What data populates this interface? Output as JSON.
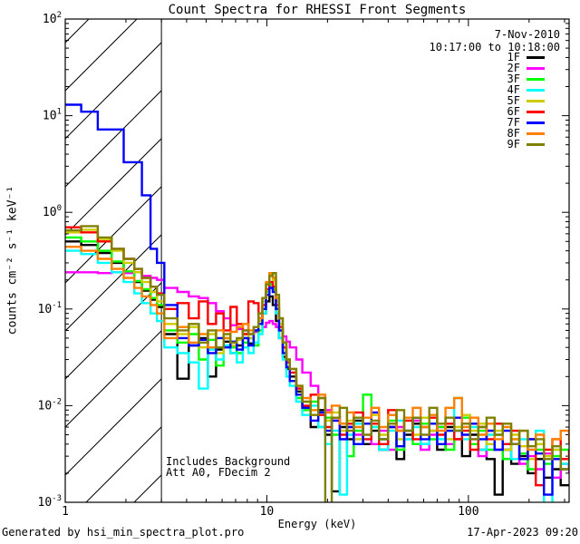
{
  "title": "Count Spectra for RHESSI Front Segments",
  "header": {
    "date": "7-Nov-2010",
    "time_range": "10:17:00 to 10:18:00"
  },
  "annotations": {
    "background": "Includes Background",
    "attenuator": "Att A0, FDecim 2"
  },
  "footer": {
    "generated_by": "Generated by hsi_min_spectra_plot.pro",
    "timestamp": "17-Apr-2023 09:20"
  },
  "chart_data": {
    "type": "line",
    "title": "Count Spectra for RHESSI Front Segments",
    "xlabel": "Energy (keV)",
    "ylabel": "counts cm⁻² s⁻¹ keV⁻¹",
    "xscale": "log",
    "yscale": "log",
    "xlim": [
      1,
      316
    ],
    "ylim": [
      0.001,
      100
    ],
    "x_major_ticks": [
      1,
      10,
      100
    ],
    "y_major_tick_exponents": [
      2,
      1,
      0,
      -1,
      -2,
      -3
    ],
    "grid": false,
    "legend_position": "top-right-inside",
    "step_mode": true,
    "hatched_region": {
      "x_range": [
        1,
        3
      ],
      "style": "diagonal-lines"
    },
    "energies": [
      1.0,
      1.2,
      1.45,
      1.7,
      1.95,
      2.2,
      2.4,
      2.65,
      2.85,
      3.1,
      3.6,
      4.1,
      4.6,
      5.1,
      5.6,
      6.1,
      6.6,
      7.1,
      7.6,
      8.1,
      8.6,
      9.1,
      9.5,
      9.9,
      10.3,
      10.7,
      11.1,
      11.5,
      12.0,
      12.5,
      13,
      14,
      15,
      16.5,
      18,
      19.5,
      21,
      23,
      25,
      27,
      30,
      33,
      36,
      40,
      44,
      48,
      53,
      58,
      64,
      70,
      77,
      85,
      93,
      102,
      112,
      123,
      135,
      148,
      163,
      179,
      197,
      216,
      237,
      261,
      287,
      316
    ],
    "series": [
      {
        "name": "1F",
        "color": "#000000",
        "values": [
          0.5,
          0.46,
          0.38,
          0.3,
          0.24,
          0.19,
          0.155,
          0.125,
          0.105,
          0.055,
          0.019,
          0.042,
          0.05,
          0.02,
          0.038,
          0.046,
          0.035,
          0.042,
          0.05,
          0.044,
          0.06,
          0.07,
          0.09,
          0.12,
          0.135,
          0.11,
          0.075,
          0.05,
          0.032,
          0.024,
          0.02,
          0.014,
          0.0095,
          0.006,
          0.009,
          0.005,
          0.0013,
          0.006,
          0.0045,
          0.007,
          0.004,
          0.0055,
          0.0035,
          0.006,
          0.0028,
          0.005,
          0.0065,
          0.004,
          0.0055,
          0.0035,
          0.006,
          0.0045,
          0.003,
          0.005,
          0.0035,
          0.0028,
          0.0012,
          0.0035,
          0.0025,
          0.003,
          0.002,
          0.0028,
          0.0018,
          0.0022,
          0.0015,
          0.0015
        ]
      },
      {
        "name": "2F",
        "color": "#FF00FF",
        "values": [
          0.24,
          0.24,
          0.235,
          0.24,
          0.235,
          0.24,
          0.22,
          0.21,
          0.2,
          0.165,
          0.15,
          0.135,
          0.13,
          0.115,
          0.095,
          0.08,
          0.068,
          0.062,
          0.06,
          0.055,
          0.058,
          0.06,
          0.065,
          0.072,
          0.075,
          0.07,
          0.065,
          0.06,
          0.052,
          0.046,
          0.04,
          0.03,
          0.022,
          0.016,
          0.012,
          0.009,
          0.007,
          0.0045,
          0.006,
          0.005,
          0.0065,
          0.004,
          0.0055,
          0.0035,
          0.006,
          0.0045,
          0.007,
          0.0035,
          0.005,
          0.006,
          0.004,
          0.0055,
          0.0065,
          0.0045,
          0.003,
          0.0055,
          0.0035,
          0.0028,
          0.004,
          0.0025,
          0.003,
          0.0022,
          0.0032,
          0.0018,
          0.0025,
          0.002
        ]
      },
      {
        "name": "3F",
        "color": "#00FF00",
        "values": [
          0.55,
          0.5,
          0.4,
          0.31,
          0.245,
          0.195,
          0.16,
          0.13,
          0.11,
          0.06,
          0.045,
          0.055,
          0.03,
          0.048,
          0.026,
          0.05,
          0.04,
          0.035,
          0.045,
          0.05,
          0.042,
          0.06,
          0.1,
          0.15,
          0.18,
          0.16,
          0.1,
          0.06,
          0.035,
          0.025,
          0.018,
          0.012,
          0.009,
          0.011,
          0.006,
          0.0075,
          0.005,
          0.0065,
          0.003,
          0.0055,
          0.013,
          0.006,
          0.0045,
          0.007,
          0.0035,
          0.0055,
          0.004,
          0.0065,
          0.0045,
          0.006,
          0.0035,
          0.0055,
          0.0075,
          0.004,
          0.0055,
          0.0035,
          0.005,
          0.0028,
          0.0045,
          0.0032,
          0.0022,
          0.0035,
          0.0025,
          0.003,
          0.0035,
          0.003
        ]
      },
      {
        "name": "4F",
        "color": "#00FFFF",
        "values": [
          0.4,
          0.37,
          0.3,
          0.24,
          0.19,
          0.145,
          0.115,
          0.09,
          0.075,
          0.04,
          0.035,
          0.028,
          0.015,
          0.038,
          0.03,
          0.042,
          0.035,
          0.028,
          0.04,
          0.035,
          0.045,
          0.055,
          0.09,
          0.14,
          0.17,
          0.15,
          0.09,
          0.05,
          0.03,
          0.02,
          0.016,
          0.011,
          0.008,
          0.01,
          0.006,
          0.004,
          0.0055,
          0.0012,
          0.005,
          0.0065,
          0.0045,
          0.006,
          0.0035,
          0.0055,
          0.007,
          0.0045,
          0.006,
          0.004,
          0.0065,
          0.0045,
          0.0055,
          0.012,
          0.0045,
          0.006,
          0.0035,
          0.005,
          0.0065,
          0.004,
          0.0028,
          0.0045,
          0.0035,
          0.0055,
          0.0008,
          0.0035,
          0.0025,
          0.003
        ]
      },
      {
        "name": "5F",
        "color": "#CCCC00",
        "values": [
          0.62,
          0.66,
          0.52,
          0.4,
          0.3,
          0.24,
          0.19,
          0.15,
          0.12,
          0.07,
          0.055,
          0.065,
          0.04,
          0.055,
          0.035,
          0.05,
          0.042,
          0.048,
          0.055,
          0.05,
          0.06,
          0.075,
          0.12,
          0.18,
          0.23,
          0.2,
          0.12,
          0.07,
          0.04,
          0.028,
          0.022,
          0.015,
          0.011,
          0.008,
          0.012,
          0.007,
          0.0085,
          0.0055,
          0.007,
          0.0045,
          0.0065,
          0.008,
          0.005,
          0.0065,
          0.0045,
          0.007,
          0.005,
          0.0075,
          0.0055,
          0.0065,
          0.0045,
          0.006,
          0.008,
          0.0055,
          0.0065,
          0.004,
          0.0055,
          0.0035,
          0.005,
          0.0038,
          0.0028,
          0.004,
          0.003,
          0.0035,
          0.0028,
          0.0032
        ]
      },
      {
        "name": "6F",
        "color": "#FF0000",
        "values": [
          0.7,
          0.62,
          0.5,
          0.42,
          0.33,
          0.26,
          0.21,
          0.17,
          0.145,
          0.1,
          0.115,
          0.08,
          0.12,
          0.07,
          0.09,
          0.06,
          0.105,
          0.07,
          0.055,
          0.12,
          0.115,
          0.08,
          0.11,
          0.16,
          0.19,
          0.17,
          0.11,
          0.065,
          0.04,
          0.028,
          0.022,
          0.015,
          0.01,
          0.013,
          0.008,
          0.006,
          0.0075,
          0.005,
          0.0065,
          0.0085,
          0.0045,
          0.0065,
          0.004,
          0.009,
          0.0055,
          0.007,
          0.0045,
          0.006,
          0.0075,
          0.005,
          0.0065,
          0.0045,
          0.0055,
          0.0035,
          0.006,
          0.0045,
          0.0065,
          0.004,
          0.0055,
          0.0028,
          0.0045,
          0.0015,
          0.0035,
          0.0045,
          0.0028,
          0.0035
        ]
      },
      {
        "name": "7F",
        "color": "#0000FF",
        "values": [
          13,
          11,
          7.2,
          7.2,
          3.3,
          3.3,
          1.5,
          0.42,
          0.3,
          0.11,
          0.05,
          0.042,
          0.048,
          0.035,
          0.05,
          0.04,
          0.046,
          0.038,
          0.05,
          0.042,
          0.06,
          0.07,
          0.1,
          0.14,
          0.165,
          0.15,
          0.1,
          0.06,
          0.035,
          0.025,
          0.018,
          0.013,
          0.0095,
          0.007,
          0.0085,
          0.0055,
          0.007,
          0.0045,
          0.006,
          0.004,
          0.0065,
          0.0085,
          0.0045,
          0.006,
          0.0038,
          0.0055,
          0.0075,
          0.0045,
          0.0065,
          0.004,
          0.0055,
          0.0075,
          0.005,
          0.0065,
          0.0045,
          0.0055,
          0.0035,
          0.0055,
          0.004,
          0.0028,
          0.0045,
          0.0032,
          0.0012,
          0.0028,
          0.0022,
          0.0025
        ]
      },
      {
        "name": "8F",
        "color": "#FF8000",
        "values": [
          0.44,
          0.4,
          0.33,
          0.26,
          0.21,
          0.165,
          0.135,
          0.11,
          0.09,
          0.05,
          0.065,
          0.045,
          0.055,
          0.04,
          0.06,
          0.05,
          0.058,
          0.065,
          0.07,
          0.06,
          0.065,
          0.08,
          0.13,
          0.19,
          0.235,
          0.21,
          0.13,
          0.08,
          0.045,
          0.03,
          0.024,
          0.016,
          0.012,
          0.009,
          0.013,
          0.0085,
          0.01,
          0.0065,
          0.0085,
          0.006,
          0.0075,
          0.0095,
          0.006,
          0.008,
          0.0055,
          0.0075,
          0.0095,
          0.006,
          0.008,
          0.0055,
          0.0095,
          0.012,
          0.006,
          0.0075,
          0.005,
          0.0065,
          0.0045,
          0.006,
          0.0045,
          0.0055,
          0.0035,
          0.005,
          0.0028,
          0.0045,
          0.0055,
          0.004
        ]
      },
      {
        "name": "9F",
        "color": "#808000",
        "values": [
          0.65,
          0.72,
          0.55,
          0.42,
          0.33,
          0.26,
          0.21,
          0.17,
          0.14,
          0.08,
          0.06,
          0.07,
          0.045,
          0.06,
          0.04,
          0.055,
          0.045,
          0.05,
          0.06,
          0.055,
          0.065,
          0.09,
          0.13,
          0.18,
          0.22,
          0.235,
          0.14,
          0.08,
          0.045,
          0.03,
          0.024,
          0.016,
          0.011,
          0.008,
          0.012,
          0.0008,
          0.0075,
          0.0095,
          0.0055,
          0.0075,
          0.005,
          0.007,
          0.0045,
          0.0065,
          0.009,
          0.0055,
          0.0075,
          0.005,
          0.0095,
          0.0065,
          0.0075,
          0.0055,
          0.0065,
          0.0045,
          0.006,
          0.0075,
          0.005,
          0.0065,
          0.004,
          0.0055,
          0.0038,
          0.0045,
          0.0028,
          0.0038,
          0.0022,
          0.0028
        ]
      }
    ]
  }
}
